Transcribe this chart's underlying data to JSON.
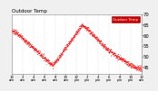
{
  "title_short": "Outdoor Temp",
  "bg_color": "#f0f0f0",
  "plot_bg": "#ffffff",
  "line_color": "#ff0000",
  "legend_bg": "#cc0000",
  "legend_text_color": "#ffffff",
  "legend_label": "Outdoor Temp",
  "ylim": [
    42,
    70
  ],
  "yticks": [
    45,
    50,
    55,
    60,
    65,
    70
  ],
  "ylabel_fontsize": 3.8,
  "xlabel_fontsize": 2.8,
  "title_fontsize": 4.0,
  "marker_size": 0.8,
  "num_points": 1440,
  "grid_color": "#bbbbbb",
  "vgrid_positions": [
    0,
    2,
    4,
    6,
    8,
    10,
    12,
    14,
    16,
    18,
    20,
    22,
    24
  ]
}
